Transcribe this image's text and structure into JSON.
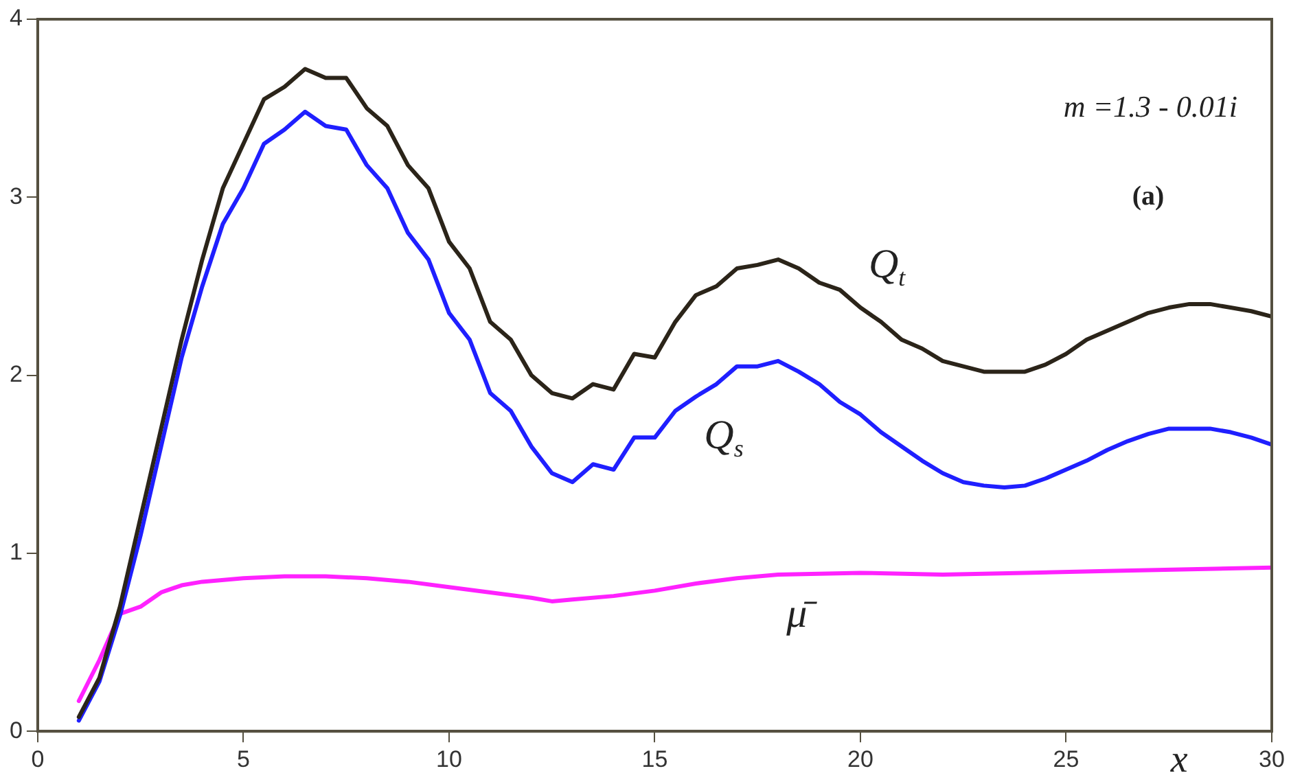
{
  "chart_data": {
    "type": "line",
    "xlabel": "x",
    "xlim": [
      0,
      30
    ],
    "xticks": [
      0,
      5,
      10,
      15,
      20,
      25,
      30
    ],
    "ylim": [
      0,
      4
    ],
    "yticks": [
      0,
      1,
      2,
      3,
      4
    ],
    "grid": false,
    "legend": false,
    "marker": "none",
    "line_style": "solid",
    "annotations": [
      "m =1.3 - 0.01i",
      "(a)"
    ],
    "series": [
      {
        "name": "Q$_{t}$",
        "color": "#2b2419",
        "x": [
          1,
          1.5,
          2,
          2.5,
          3,
          3.5,
          4,
          4.5,
          5,
          5.5,
          6,
          6.5,
          7,
          7.5,
          8,
          8.5,
          9,
          9.5,
          10,
          10.5,
          11,
          11.5,
          12,
          12.5,
          13,
          13.5,
          14,
          14.5,
          15,
          15.5,
          16,
          16.5,
          17,
          17.5,
          18,
          18.5,
          19,
          19.5,
          20,
          20.5,
          21,
          21.5,
          22,
          22.5,
          23,
          23.5,
          24,
          24.5,
          25,
          25.5,
          26,
          26.5,
          27,
          27.5,
          28,
          28.5,
          29,
          29.5,
          30
        ],
        "values": [
          0.08,
          0.3,
          0.7,
          1.2,
          1.7,
          2.2,
          2.65,
          3.05,
          3.3,
          3.55,
          3.62,
          3.72,
          3.67,
          3.67,
          3.5,
          3.4,
          3.18,
          3.05,
          2.75,
          2.6,
          2.3,
          2.2,
          2.0,
          1.9,
          1.87,
          1.95,
          1.92,
          2.12,
          2.1,
          2.3,
          2.45,
          2.5,
          2.6,
          2.62,
          2.65,
          2.6,
          2.52,
          2.48,
          2.38,
          2.3,
          2.2,
          2.15,
          2.08,
          2.05,
          2.02,
          2.02,
          2.02,
          2.06,
          2.12,
          2.2,
          2.25,
          2.3,
          2.35,
          2.38,
          2.4,
          2.4,
          2.38,
          2.36,
          2.33
        ]
      },
      {
        "name": "Q$_{s}$",
        "color": "#1f1fff",
        "x": [
          1,
          1.5,
          2,
          2.5,
          3,
          3.5,
          4,
          4.5,
          5,
          5.5,
          6,
          6.5,
          7,
          7.5,
          8,
          8.5,
          9,
          9.5,
          10,
          10.5,
          11,
          11.5,
          12,
          12.5,
          13,
          13.5,
          14,
          14.5,
          15,
          15.5,
          16,
          16.5,
          17,
          17.5,
          18,
          18.5,
          19,
          19.5,
          20,
          20.5,
          21,
          21.5,
          22,
          22.5,
          23,
          23.5,
          24,
          24.5,
          25,
          25.5,
          26,
          26.5,
          27,
          27.5,
          28,
          28.5,
          29,
          29.5,
          30
        ],
        "values": [
          0.06,
          0.28,
          0.65,
          1.1,
          1.6,
          2.1,
          2.5,
          2.85,
          3.05,
          3.3,
          3.38,
          3.48,
          3.4,
          3.38,
          3.18,
          3.05,
          2.8,
          2.65,
          2.35,
          2.2,
          1.9,
          1.8,
          1.6,
          1.45,
          1.4,
          1.5,
          1.47,
          1.65,
          1.65,
          1.8,
          1.88,
          1.95,
          2.05,
          2.05,
          2.08,
          2.02,
          1.95,
          1.85,
          1.78,
          1.68,
          1.6,
          1.52,
          1.45,
          1.4,
          1.38,
          1.37,
          1.38,
          1.42,
          1.47,
          1.52,
          1.58,
          1.63,
          1.67,
          1.7,
          1.7,
          1.7,
          1.68,
          1.65,
          1.61
        ]
      },
      {
        "name": "μ̄",
        "color": "#ff22ff",
        "x": [
          1,
          1.5,
          2,
          2.5,
          3,
          3.5,
          4,
          5,
          6,
          7,
          8,
          9,
          10,
          11,
          12,
          12.5,
          13,
          14,
          15,
          16,
          17,
          18,
          20,
          22,
          24,
          26,
          28,
          30
        ],
        "values": [
          0.17,
          0.4,
          0.66,
          0.7,
          0.78,
          0.82,
          0.84,
          0.86,
          0.87,
          0.87,
          0.86,
          0.84,
          0.81,
          0.78,
          0.75,
          0.73,
          0.74,
          0.76,
          0.79,
          0.83,
          0.86,
          0.88,
          0.89,
          0.88,
          0.89,
          0.9,
          0.91,
          0.92
        ]
      }
    ]
  }
}
